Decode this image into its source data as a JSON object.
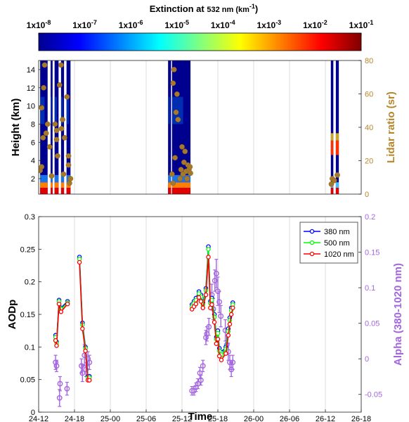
{
  "colorbar": {
    "title_pre": "Extinction at ",
    "title_num": "532",
    "title_unit": " nm (km",
    "title_exp": "-1",
    "title_close": ")",
    "tick_mantissa": "1x10",
    "tick_exponents": [
      "-8",
      "-7",
      "-6",
      "-5",
      "-4",
      "-3",
      "-2",
      "-1"
    ],
    "range_log10": [
      -8,
      -1
    ],
    "colormap": [
      "#00008f",
      "#0000ff",
      "#0080ff",
      "#00ffff",
      "#80ff80",
      "#ffff00",
      "#ff8000",
      "#ff0000",
      "#800000"
    ]
  },
  "chart_data": [
    {
      "type": "heatmap",
      "ylabel": "Height (km)",
      "y2label": "Lidar ratio (sr)",
      "ylim": [
        0.3,
        15
      ],
      "yticks": [
        "2",
        "4",
        "6",
        "8",
        "10",
        "12",
        "14"
      ],
      "y2lim": [
        0,
        80
      ],
      "y2ticks": [
        "0",
        "20",
        "40",
        "60",
        "80"
      ],
      "xlim": [
        "24-12",
        "26-18"
      ],
      "grid": true,
      "colors": {
        "lidar_ratio_axis": "#b5862a",
        "lidar_ratio_points": "#a6792a"
      },
      "profile_blocks": [
        {
          "t_start": "24-12:15",
          "t_end": "24-13:30"
        },
        {
          "t_start": "24-14:00",
          "t_end": "24-14:20"
        },
        {
          "t_start": "24-14:40",
          "t_end": "24-15:20"
        },
        {
          "t_start": "24-15:45",
          "t_end": "24-16:15"
        },
        {
          "t_start": "24-16:40",
          "t_end": "24-17:20"
        },
        {
          "t_start": "25-09:40",
          "t_end": "25-10:10"
        },
        {
          "t_start": "25-10:20",
          "t_end": "25-13:25"
        },
        {
          "t_start": "26-12:55",
          "t_end": "26-13:20"
        },
        {
          "t_start": "26-13:45",
          "t_end": "26-14:15"
        }
      ],
      "lidar_ratio_points": [
        {
          "t": "24-12:15",
          "h": 2.9,
          "sr": 15
        },
        {
          "t": "24-12:30",
          "h": 3.3,
          "sr": 17
        },
        {
          "t": "24-12:30",
          "h": 9.8,
          "sr": 52
        },
        {
          "t": "24-12:45",
          "h": 6.5,
          "sr": 33
        },
        {
          "t": "24-12:50",
          "h": 12.0,
          "sr": 64
        },
        {
          "t": "24-13:00",
          "h": 14.5,
          "sr": 78
        },
        {
          "t": "24-13:15",
          "h": 7.0,
          "sr": 36
        },
        {
          "t": "24-13:30",
          "h": 8.0,
          "sr": 42
        },
        {
          "t": "24-13:50",
          "h": 5.5,
          "sr": 29
        },
        {
          "t": "24-14:10",
          "h": 2.3,
          "sr": 11
        },
        {
          "t": "24-14:45",
          "h": 8.0,
          "sr": 42
        },
        {
          "t": "24-15:00",
          "h": 7.3,
          "sr": 38
        },
        {
          "t": "24-15:00",
          "h": 6.3,
          "sr": 33
        },
        {
          "t": "24-15:10",
          "h": 4.5,
          "sr": 23
        },
        {
          "t": "24-15:30",
          "h": 12.3,
          "sr": 65
        },
        {
          "t": "24-15:45",
          "h": 14.5,
          "sr": 78
        },
        {
          "t": "24-15:50",
          "h": 7.5,
          "sr": 40
        },
        {
          "t": "24-16:00",
          "h": 8.5,
          "sr": 45
        },
        {
          "t": "24-16:10",
          "h": 2.5,
          "sr": 12
        },
        {
          "t": "24-16:20",
          "h": 6.5,
          "sr": 34
        },
        {
          "t": "24-16:45",
          "h": 11.0,
          "sr": 58
        },
        {
          "t": "24-17:00",
          "h": 3.5,
          "sr": 18
        },
        {
          "t": "24-17:00",
          "h": 4.5,
          "sr": 24
        },
        {
          "t": "24-17:10",
          "h": 1.5,
          "sr": 9
        },
        {
          "t": "24-17:20",
          "h": 2.0,
          "sr": 11
        },
        {
          "t": "25-10:20",
          "h": 2.5,
          "sr": 13
        },
        {
          "t": "25-10:30",
          "h": 1.5,
          "sr": 7
        },
        {
          "t": "25-10:30",
          "h": 12.5,
          "sr": 66
        },
        {
          "t": "25-10:40",
          "h": 14.0,
          "sr": 75
        },
        {
          "t": "25-10:50",
          "h": 4.3,
          "sr": 22
        },
        {
          "t": "25-11:00",
          "h": 9.3,
          "sr": 50
        },
        {
          "t": "25-11:10",
          "h": 11.3,
          "sr": 60
        },
        {
          "t": "25-11:20",
          "h": 8.5,
          "sr": 45
        },
        {
          "t": "25-11:40",
          "h": 2.0,
          "sr": 10
        },
        {
          "t": "25-11:50",
          "h": 3.0,
          "sr": 16
        },
        {
          "t": "25-12:00",
          "h": 5.5,
          "sr": 29
        },
        {
          "t": "25-12:10",
          "h": 2.5,
          "sr": 12
        },
        {
          "t": "25-12:20",
          "h": 3.8,
          "sr": 19
        },
        {
          "t": "25-12:30",
          "h": 5.0,
          "sr": 26
        },
        {
          "t": "25-12:40",
          "h": 2.8,
          "sr": 14
        },
        {
          "t": "25-12:50",
          "h": 2.0,
          "sr": 10
        },
        {
          "t": "25-13:00",
          "h": 3.5,
          "sr": 18
        },
        {
          "t": "25-13:10",
          "h": 3.0,
          "sr": 15
        },
        {
          "t": "25-13:20",
          "h": 3.3,
          "sr": 17
        },
        {
          "t": "25-13:25",
          "h": 2.6,
          "sr": 13
        },
        {
          "t": "26-13:00",
          "h": 1.4,
          "sr": 8
        },
        {
          "t": "26-13:10",
          "h": 2.0,
          "sr": 11
        },
        {
          "t": "26-13:30",
          "h": 1.8,
          "sr": 10
        },
        {
          "t": "26-14:00",
          "h": 2.4,
          "sr": 12
        }
      ]
    },
    {
      "type": "line",
      "xlabel": "Time",
      "ylabel": "AODp",
      "y2label": "Alpha (380-1020 nm)",
      "xticks": [
        "24-12",
        "24-18",
        "25-00",
        "25-06",
        "25-12",
        "25-18",
        "26-00",
        "26-06",
        "26-12",
        "26-18"
      ],
      "xlim": [
        "24-12",
        "26-18"
      ],
      "ylim": [
        0,
        0.3
      ],
      "yticks": [
        "0",
        "0.05",
        "0.1",
        "0.15",
        "0.2",
        "0.25",
        "0.3"
      ],
      "y2lim": [
        -0.075,
        0.2
      ],
      "y2ticks": [
        "-0.05",
        "0",
        "0.05",
        "0.1",
        "0.15",
        "0.2"
      ],
      "grid": "vertical",
      "legend_position": "top-right",
      "colors": {
        "alpha": "#a366e0"
      },
      "series": [
        {
          "name": "380 nm",
          "color": "#0000ff",
          "segments": [
            [
              [
                "24-14:50",
                0.118
              ],
              [
                "24-15:00",
                0.108
              ],
              [
                "24-15:25",
                0.172
              ],
              [
                "24-15:45",
                0.16
              ],
              [
                "24-16:50",
                0.17
              ]
            ],
            [
              [
                "24-18:50",
                0.238
              ],
              [
                "24-19:20",
                0.137
              ],
              [
                "24-19:50",
                0.1
              ],
              [
                "24-20:15",
                0.055
              ],
              [
                "24-20:30",
                0.055
              ]
            ],
            [
              [
                "25-13:40",
                0.165
              ],
              [
                "25-14:00",
                0.17
              ],
              [
                "25-14:20",
                0.175
              ],
              [
                "25-14:50",
                0.185
              ],
              [
                "25-15:10",
                0.18
              ],
              [
                "25-15:30",
                0.168
              ],
              [
                "25-16:00",
                0.19
              ],
              [
                "25-16:25",
                0.254
              ],
              [
                "25-16:45",
                0.17
              ],
              [
                "25-17:00",
                0.175
              ],
              [
                "25-17:25",
                0.15
              ],
              [
                "25-17:45",
                0.115
              ],
              [
                "25-18:00",
                0.125
              ],
              [
                "25-18:15",
                0.098
              ],
              [
                "25-18:35",
                0.092
              ],
              [
                "25-19:20",
                0.1
              ],
              [
                "25-19:45",
                0.128
              ],
              [
                "25-20:00",
                0.145
              ],
              [
                "25-20:15",
                0.16
              ],
              [
                "25-20:30",
                0.168
              ]
            ]
          ]
        },
        {
          "name": "500 nm",
          "color": "#00ff00",
          "segments": [
            [
              [
                "24-14:50",
                0.115
              ],
              [
                "24-15:00",
                0.106
              ],
              [
                "24-15:25",
                0.17
              ],
              [
                "24-15:45",
                0.158
              ],
              [
                "24-16:50",
                0.168
              ]
            ],
            [
              [
                "24-18:50",
                0.235
              ],
              [
                "24-19:20",
                0.134
              ],
              [
                "24-19:50",
                0.098
              ],
              [
                "24-20:15",
                0.053
              ],
              [
                "24-20:30",
                0.053
              ]
            ],
            [
              [
                "25-13:40",
                0.162
              ],
              [
                "25-14:00",
                0.167
              ],
              [
                "25-14:20",
                0.172
              ],
              [
                "25-14:50",
                0.182
              ],
              [
                "25-15:10",
                0.177
              ],
              [
                "25-15:30",
                0.165
              ],
              [
                "25-16:00",
                0.187
              ],
              [
                "25-16:25",
                0.25
              ],
              [
                "25-16:45",
                0.167
              ],
              [
                "25-17:00",
                0.172
              ],
              [
                "25-17:25",
                0.146
              ],
              [
                "25-17:45",
                0.112
              ],
              [
                "25-18:00",
                0.121
              ],
              [
                "25-18:15",
                0.094
              ],
              [
                "25-18:35",
                0.088
              ],
              [
                "25-19:20",
                0.097
              ],
              [
                "25-19:45",
                0.124
              ],
              [
                "25-20:00",
                0.141
              ],
              [
                "25-20:15",
                0.156
              ],
              [
                "25-20:30",
                0.165
              ]
            ]
          ]
        },
        {
          "name": "1020 nm",
          "color": "#ff0000",
          "segments": [
            [
              [
                "24-14:50",
                0.11
              ],
              [
                "24-15:00",
                0.102
              ],
              [
                "24-15:25",
                0.166
              ],
              [
                "24-15:45",
                0.154
              ],
              [
                "24-16:50",
                0.166
              ]
            ],
            [
              [
                "24-18:50",
                0.23
              ],
              [
                "24-19:20",
                0.128
              ],
              [
                "24-19:50",
                0.094
              ],
              [
                "24-20:15",
                0.049
              ],
              [
                "24-20:30",
                0.049
              ]
            ],
            [
              [
                "25-13:40",
                0.158
              ],
              [
                "25-14:00",
                0.162
              ],
              [
                "25-14:20",
                0.166
              ],
              [
                "25-14:50",
                0.176
              ],
              [
                "25-15:10",
                0.17
              ],
              [
                "25-15:30",
                0.16
              ],
              [
                "25-16:00",
                0.18
              ],
              [
                "25-16:25",
                0.238
              ],
              [
                "25-16:45",
                0.16
              ],
              [
                "25-17:00",
                0.165
              ],
              [
                "25-17:25",
                0.138
              ],
              [
                "25-17:45",
                0.105
              ],
              [
                "25-18:00",
                0.112
              ],
              [
                "25-18:15",
                0.086
              ],
              [
                "25-18:35",
                0.08
              ],
              [
                "25-19:20",
                0.09
              ],
              [
                "25-19:45",
                0.118
              ],
              [
                "25-20:00",
                0.135
              ],
              [
                "25-20:15",
                0.15
              ],
              [
                "25-20:30",
                0.16
              ]
            ]
          ]
        }
      ],
      "alpha_points": [
        {
          "t": "24-14:50",
          "v": -0.005,
          "err": 0.01
        },
        {
          "t": "24-15:00",
          "v": -0.01,
          "err": 0.008
        },
        {
          "t": "24-15:30",
          "v": -0.055,
          "err": 0.012
        },
        {
          "t": "24-15:35",
          "v": -0.035,
          "err": 0.01
        },
        {
          "t": "24-16:45",
          "v": -0.042,
          "err": 0.009
        },
        {
          "t": "24-19:10",
          "v": -0.01,
          "err": 0.01
        },
        {
          "t": "24-19:20",
          "v": -0.02,
          "err": 0.012
        },
        {
          "t": "24-19:40",
          "v": 0.005,
          "err": 0.015
        },
        {
          "t": "24-19:55",
          "v": -0.015,
          "err": 0.01
        },
        {
          "t": "24-20:15",
          "v": 0.0,
          "err": 0.01
        },
        {
          "t": "24-20:30",
          "v": -0.005,
          "err": 0.01
        },
        {
          "t": "25-13:40",
          "v": -0.045,
          "err": 0.006
        },
        {
          "t": "25-14:00",
          "v": -0.045,
          "err": 0.006
        },
        {
          "t": "25-14:20",
          "v": -0.04,
          "err": 0.006
        },
        {
          "t": "25-14:40",
          "v": -0.035,
          "err": 0.007
        },
        {
          "t": "25-15:00",
          "v": -0.02,
          "err": 0.008
        },
        {
          "t": "25-15:10",
          "v": -0.03,
          "err": 0.007
        },
        {
          "t": "25-15:30",
          "v": -0.01,
          "err": 0.008
        },
        {
          "t": "25-16:00",
          "v": 0.03,
          "err": 0.01
        },
        {
          "t": "25-16:10",
          "v": 0.035,
          "err": 0.01
        },
        {
          "t": "25-16:30",
          "v": 0.045,
          "err": 0.012
        },
        {
          "t": "25-17:00",
          "v": 0.09,
          "err": 0.015
        },
        {
          "t": "25-17:15",
          "v": 0.07,
          "err": 0.015
        },
        {
          "t": "25-17:30",
          "v": 0.11,
          "err": 0.015
        },
        {
          "t": "25-17:45",
          "v": 0.12,
          "err": 0.02
        },
        {
          "t": "25-18:00",
          "v": 0.095,
          "err": 0.02
        },
        {
          "t": "25-18:15",
          "v": 0.08,
          "err": 0.015
        },
        {
          "t": "25-18:30",
          "v": 0.06,
          "err": 0.015
        },
        {
          "t": "25-19:15",
          "v": 0.04,
          "err": 0.015
        },
        {
          "t": "25-19:30",
          "v": 0.02,
          "err": 0.012
        },
        {
          "t": "25-19:45",
          "v": 0.01,
          "err": 0.012
        },
        {
          "t": "25-20:00",
          "v": -0.005,
          "err": 0.01
        },
        {
          "t": "25-20:15",
          "v": -0.015,
          "err": 0.01
        },
        {
          "t": "25-20:30",
          "v": -0.005,
          "err": 0.01
        }
      ]
    }
  ]
}
